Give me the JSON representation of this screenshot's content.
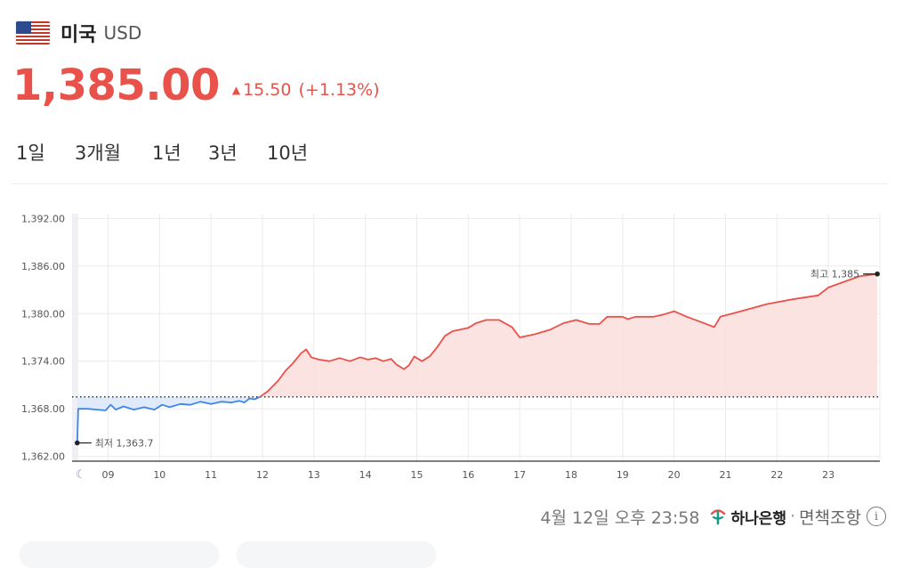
{
  "header": {
    "country": "미국",
    "currency": "USD"
  },
  "quote": {
    "price": "1,385.00",
    "change_arrow": "▲",
    "change": "15.50",
    "change_pct": "(+1.13%)"
  },
  "tabs": [
    {
      "label": "1일",
      "active": true
    },
    {
      "label": "3개월",
      "active": false
    },
    {
      "label": "1년",
      "active": false
    },
    {
      "label": "3년",
      "active": false
    },
    {
      "label": "10년",
      "active": false
    }
  ],
  "footer": {
    "timestamp": "4월 12일 오후 23:58",
    "bank": "하나은행",
    "separator": "·",
    "disclaimer": "면책조항",
    "info": "i"
  },
  "colors": {
    "up": "#e8524a",
    "down": "#3d86e8",
    "up_fill": "#fbe0de",
    "down_fill": "#dce8fa"
  },
  "chart_data": {
    "type": "line",
    "title": "",
    "xlabel": "",
    "ylabel": "",
    "ylim": [
      1361.4,
      1392.6
    ],
    "xlim": [
      8.3,
      24.0
    ],
    "yticks": [
      1362,
      1368,
      1374,
      1380,
      1386,
      1392
    ],
    "ytick_labels": [
      "1,362.00",
      "1,368.00",
      "1,374.00",
      "1,380.00",
      "1,386.00",
      "1,392.00"
    ],
    "xticks": [
      9,
      10,
      11,
      12,
      13,
      14,
      15,
      16,
      17,
      18,
      19,
      20,
      21,
      22,
      23
    ],
    "xtick_labels": [
      "09",
      "10",
      "11",
      "12",
      "13",
      "14",
      "15",
      "16",
      "17",
      "18",
      "19",
      "20",
      "21",
      "22",
      "23"
    ],
    "baseline": 1369.5,
    "grid": true,
    "night_icon": "moon-icon",
    "low": {
      "x": 8.4,
      "y": 1363.7,
      "label": "최저 1,363.7"
    },
    "high": {
      "x": 23.95,
      "y": 1385.0,
      "label": "최고 1,385"
    },
    "series": [
      {
        "points": [
          [
            8.4,
            1363.7
          ],
          [
            8.42,
            1368.0
          ],
          [
            8.6,
            1368.0
          ],
          [
            8.95,
            1367.8
          ],
          [
            9.05,
            1368.5
          ],
          [
            9.15,
            1367.9
          ],
          [
            9.3,
            1368.3
          ],
          [
            9.5,
            1367.9
          ],
          [
            9.7,
            1368.2
          ],
          [
            9.9,
            1367.9
          ],
          [
            10.05,
            1368.5
          ],
          [
            10.2,
            1368.2
          ],
          [
            10.4,
            1368.6
          ],
          [
            10.6,
            1368.5
          ],
          [
            10.8,
            1368.9
          ],
          [
            11.0,
            1368.6
          ],
          [
            11.2,
            1368.9
          ],
          [
            11.4,
            1368.8
          ],
          [
            11.55,
            1369.0
          ],
          [
            11.65,
            1368.8
          ],
          [
            11.75,
            1369.3
          ],
          [
            11.85,
            1369.2
          ],
          [
            11.95,
            1369.5
          ],
          [
            12.1,
            1370.2
          ],
          [
            12.3,
            1371.5
          ],
          [
            12.45,
            1372.8
          ],
          [
            12.6,
            1373.8
          ],
          [
            12.75,
            1375.0
          ],
          [
            12.85,
            1375.5
          ],
          [
            12.95,
            1374.5
          ],
          [
            13.1,
            1374.2
          ],
          [
            13.3,
            1374.0
          ],
          [
            13.5,
            1374.4
          ],
          [
            13.7,
            1374.0
          ],
          [
            13.9,
            1374.5
          ],
          [
            14.05,
            1374.2
          ],
          [
            14.2,
            1374.4
          ],
          [
            14.35,
            1374.0
          ],
          [
            14.5,
            1374.3
          ],
          [
            14.6,
            1373.6
          ],
          [
            14.75,
            1373.0
          ],
          [
            14.85,
            1373.5
          ],
          [
            14.95,
            1374.6
          ],
          [
            15.1,
            1374.0
          ],
          [
            15.25,
            1374.6
          ],
          [
            15.4,
            1375.8
          ],
          [
            15.55,
            1377.2
          ],
          [
            15.7,
            1377.8
          ],
          [
            15.85,
            1378.0
          ],
          [
            16.0,
            1378.2
          ],
          [
            16.15,
            1378.8
          ],
          [
            16.35,
            1379.2
          ],
          [
            16.6,
            1379.2
          ],
          [
            16.85,
            1378.3
          ],
          [
            17.0,
            1377.0
          ],
          [
            17.3,
            1377.4
          ],
          [
            17.6,
            1378.0
          ],
          [
            17.85,
            1378.8
          ],
          [
            18.1,
            1379.2
          ],
          [
            18.35,
            1378.7
          ],
          [
            18.55,
            1378.7
          ],
          [
            18.7,
            1379.6
          ],
          [
            19.0,
            1379.6
          ],
          [
            19.1,
            1379.3
          ],
          [
            19.25,
            1379.6
          ],
          [
            19.6,
            1379.6
          ],
          [
            19.8,
            1379.9
          ],
          [
            20.0,
            1380.3
          ],
          [
            20.25,
            1379.6
          ],
          [
            20.5,
            1379.0
          ],
          [
            20.78,
            1378.3
          ],
          [
            20.9,
            1379.6
          ],
          [
            21.3,
            1380.3
          ],
          [
            21.8,
            1381.2
          ],
          [
            22.3,
            1381.8
          ],
          [
            22.8,
            1382.3
          ],
          [
            23.0,
            1383.3
          ],
          [
            23.3,
            1384.0
          ],
          [
            23.6,
            1384.7
          ],
          [
            23.95,
            1385.0
          ]
        ]
      }
    ]
  }
}
